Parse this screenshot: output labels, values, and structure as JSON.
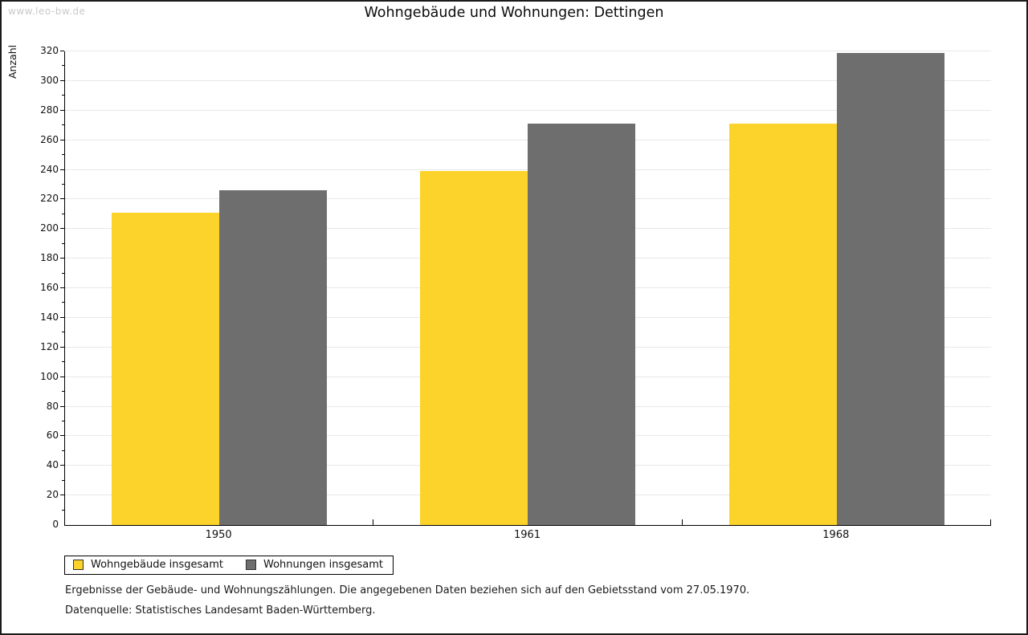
{
  "watermark": "www.leo-bw.de",
  "title": "Wohngebäude und Wohnungen: Dettingen",
  "chart_data": {
    "type": "bar",
    "title": "Wohngebäude und Wohnungen: Dettingen",
    "categories": [
      "1950",
      "1961",
      "1968"
    ],
    "series": [
      {
        "name": "Wohngebäude insgesamt",
        "color": "#FCD32B",
        "values": [
          211,
          239,
          271
        ]
      },
      {
        "name": "Wohnungen insgesamt",
        "color": "#6E6E6E",
        "values": [
          226,
          271,
          319
        ]
      }
    ],
    "xlabel": "",
    "ylabel": "Anzahl",
    "ylim": [
      0,
      320
    ],
    "ytick_major_step": 20,
    "ytick_minor_step": 10,
    "grid": true,
    "gridline_color": "#e8e8e8",
    "legend_position": "bottom-left",
    "background_color": "#ffffff"
  },
  "footer": {
    "line1": "Ergebnisse der Gebäude- und Wohnungszählungen. Die angegebenen Daten beziehen sich auf den Gebietsstand vom 27.05.1970.",
    "line2": "Datenquelle: Statistisches Landesamt Baden-Württemberg."
  }
}
